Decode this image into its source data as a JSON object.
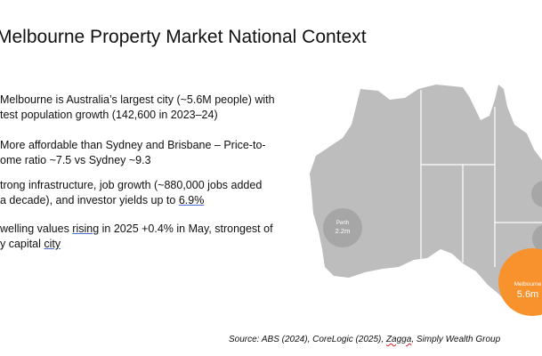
{
  "title": "Melbourne Property Market National Context",
  "bullets": [
    [
      "Melbourne is Australia’s largest city (~5.6M people) with",
      "test population growth (142,600 in 2023–24)"
    ],
    [
      "More affordable than Sydney and Brisbane – Price-to-",
      "ome ratio ~7.5 vs Sydney ~9.3"
    ],
    [
      "trong infrastructure, job growth (~880,000 jobs added",
      [
        "a decade), and investor yields up to ",
        "6.9%"
      ]
    ],
    [
      [
        "welling values ",
        "rising",
        " in 2025 +0.4% in May, strongest of"
      ],
      [
        "y capital ",
        "city"
      ]
    ]
  ],
  "map": {
    "perth": {
      "name": "Perth",
      "value": "2.2m"
    },
    "melbourne": {
      "name": "Melbourne",
      "value": "5.6m"
    }
  },
  "source": [
    "Source: ABS (2024), CoreLogic (2025), ",
    "Zagga",
    ", Simply Wealth Group"
  ]
}
